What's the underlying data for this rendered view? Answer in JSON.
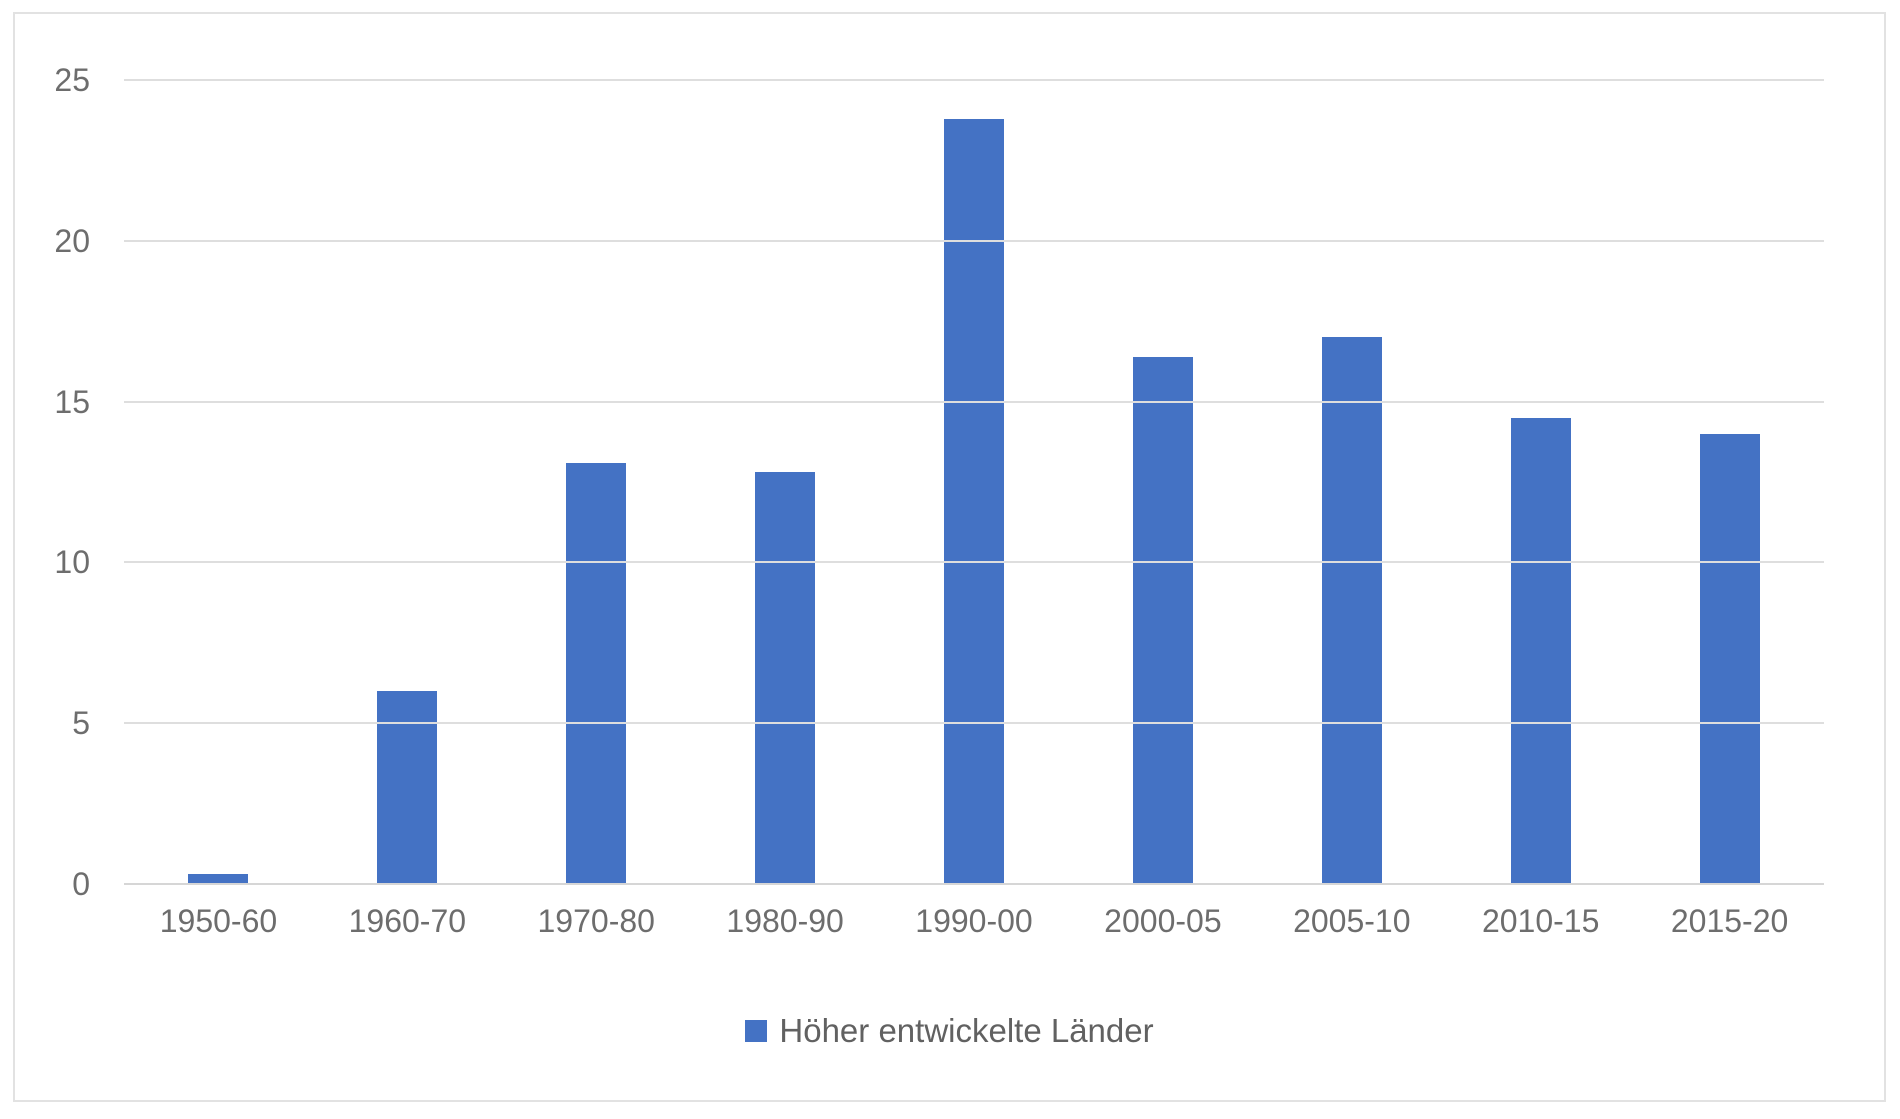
{
  "chart_data": {
    "type": "bar",
    "title": "",
    "categories": [
      "1950-60",
      "1960-70",
      "1970-80",
      "1980-90",
      "1990-00",
      "2000-05",
      "2005-10",
      "2010-15",
      "2015-20"
    ],
    "series": [
      {
        "name": "Höher entwickelte Länder",
        "values": [
          0.3,
          6.0,
          13.1,
          12.8,
          23.8,
          16.4,
          17.0,
          14.5,
          14.0
        ]
      }
    ],
    "xlabel": "",
    "ylabel": "",
    "ylim": [
      0,
      25
    ],
    "yticks": [
      0,
      5,
      10,
      15,
      20,
      25
    ],
    "grid": true,
    "legend_position": "bottom",
    "bar_color": "#4472c4"
  },
  "legend": {
    "label": "Höher entwickelte Länder"
  },
  "colors": {
    "bar": "#4472c4",
    "gridline": "#dedede",
    "axis_text": "#6d6d6d",
    "frame_border": "#e2e2e2",
    "background": "#ffffff"
  }
}
